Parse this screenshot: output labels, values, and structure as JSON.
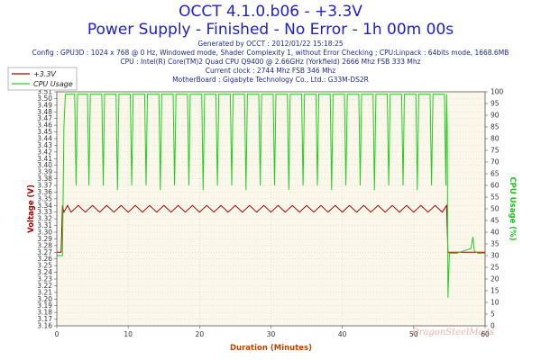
{
  "header": {
    "title": "OCCT 4.1.0.b06 - +3.3V",
    "subtitle": "Power Supply - Finished - No Error - 1h 00m 00s",
    "info_lines": [
      "Generated by OCCT : 2012/01/22 15:18:25",
      "Config : GPU3D : 1024 x 768 @ 0 Hz, Windowed mode, Shader Complexity 1, without Error Checking ; CPU:Linpack : 64bits mode, 1668.6MB",
      "CPU : Intel(R) Core(TM)2 Quad CPU Q9400 @ 2.66GHz (Yorkfield) 2666 Mhz FSB 333 Mhz",
      "Current clock : 2744 Mhz FSB 346 Mhz",
      "MotherBoard : Gigabyte Technology Co., Ltd.: G33M-DS2R"
    ]
  },
  "watermark": "DragonSteelMods",
  "colors": {
    "voltage": "#a00000",
    "cpu": "#20d020",
    "plot_bg": "#fbf7ea",
    "grid": "#c8c8c8",
    "title": "#2020c8",
    "xlabel_color": "#b84400",
    "ylabel_left_color": "#a00000",
    "ylabel_right_color": "#20c020"
  },
  "chart_data": {
    "type": "line",
    "xlabel": "Duration (Minutes)",
    "ylabel_left": "Voltage (V)",
    "ylabel_right": "CPU Usage (%)",
    "xlim": [
      0,
      60
    ],
    "ylim_left": [
      3.16,
      3.51
    ],
    "ylim_right": [
      0,
      100
    ],
    "x_ticks": [
      0,
      10,
      20,
      30,
      40,
      50,
      60
    ],
    "y_left_ticks": [
      "3.16",
      "3.17",
      "3.18",
      "3.19",
      "3.20",
      "3.21",
      "3.22",
      "3.23",
      "3.24",
      "3.25",
      "3.26",
      "3.27",
      "3.28",
      "3.29",
      "3.30",
      "3.31",
      "3.32",
      "3.33",
      "3.34",
      "3.35",
      "3.36",
      "3.37",
      "3.38",
      "3.39",
      "3.40",
      "3.41",
      "3.42",
      "3.43",
      "3.44",
      "3.45",
      "3.46",
      "3.47",
      "3.48",
      "3.49",
      "3.50",
      "3.51"
    ],
    "y_right_ticks": [
      0,
      5,
      10,
      15,
      20,
      25,
      30,
      35,
      40,
      45,
      50,
      55,
      60,
      65,
      70,
      75,
      80,
      85,
      90,
      95,
      100
    ],
    "grid": true,
    "legend_position": "top-left",
    "series": [
      {
        "name": "+3.3V",
        "axis": "left",
        "points": [
          [
            0.0,
            3.27
          ],
          [
            0.6,
            3.27
          ],
          [
            0.8,
            3.34
          ],
          [
            1.0,
            3.33
          ],
          [
            1.5,
            3.34
          ],
          [
            2.0,
            3.33
          ],
          [
            3.0,
            3.34
          ],
          [
            4.0,
            3.33
          ],
          [
            5.0,
            3.34
          ],
          [
            6.0,
            3.33
          ],
          [
            7.0,
            3.34
          ],
          [
            8.0,
            3.33
          ],
          [
            9.0,
            3.34
          ],
          [
            10.0,
            3.33
          ],
          [
            11.0,
            3.34
          ],
          [
            12.0,
            3.33
          ],
          [
            13.0,
            3.34
          ],
          [
            14.0,
            3.33
          ],
          [
            15.0,
            3.34
          ],
          [
            16.0,
            3.33
          ],
          [
            17.0,
            3.34
          ],
          [
            18.0,
            3.33
          ],
          [
            19.0,
            3.34
          ],
          [
            20.0,
            3.33
          ],
          [
            21.0,
            3.34
          ],
          [
            22.0,
            3.33
          ],
          [
            23.0,
            3.34
          ],
          [
            24.0,
            3.33
          ],
          [
            25.0,
            3.34
          ],
          [
            26.0,
            3.33
          ],
          [
            27.0,
            3.34
          ],
          [
            28.0,
            3.33
          ],
          [
            29.0,
            3.34
          ],
          [
            30.0,
            3.33
          ],
          [
            31.0,
            3.34
          ],
          [
            32.0,
            3.33
          ],
          [
            33.0,
            3.34
          ],
          [
            34.0,
            3.33
          ],
          [
            35.0,
            3.34
          ],
          [
            36.0,
            3.33
          ],
          [
            37.0,
            3.34
          ],
          [
            38.0,
            3.33
          ],
          [
            39.0,
            3.34
          ],
          [
            40.0,
            3.33
          ],
          [
            41.0,
            3.34
          ],
          [
            42.0,
            3.33
          ],
          [
            43.0,
            3.34
          ],
          [
            44.0,
            3.33
          ],
          [
            45.0,
            3.34
          ],
          [
            46.0,
            3.33
          ],
          [
            47.0,
            3.34
          ],
          [
            48.0,
            3.33
          ],
          [
            49.0,
            3.34
          ],
          [
            50.0,
            3.33
          ],
          [
            51.0,
            3.34
          ],
          [
            52.0,
            3.33
          ],
          [
            53.0,
            3.34
          ],
          [
            54.0,
            3.33
          ],
          [
            54.6,
            3.34
          ],
          [
            54.8,
            3.27
          ],
          [
            56.0,
            3.27
          ],
          [
            58.0,
            3.27
          ],
          [
            60.0,
            3.27
          ]
        ]
      },
      {
        "name": "CPU Usage",
        "axis": "right",
        "points": [
          [
            0.0,
            30
          ],
          [
            0.8,
            30
          ],
          [
            1.0,
            85
          ],
          [
            1.2,
            99
          ],
          [
            2.5,
            99
          ],
          [
            2.7,
            60
          ],
          [
            2.9,
            99
          ],
          [
            4.3,
            99
          ],
          [
            4.5,
            60
          ],
          [
            4.7,
            99
          ],
          [
            6.3,
            99
          ],
          [
            6.5,
            60
          ],
          [
            6.7,
            99
          ],
          [
            8.3,
            99
          ],
          [
            8.5,
            58
          ],
          [
            8.7,
            99
          ],
          [
            10.3,
            99
          ],
          [
            10.5,
            60
          ],
          [
            10.7,
            99
          ],
          [
            12.3,
            99
          ],
          [
            12.5,
            60
          ],
          [
            12.7,
            99
          ],
          [
            14.3,
            99
          ],
          [
            14.5,
            58
          ],
          [
            14.7,
            99
          ],
          [
            16.3,
            99
          ],
          [
            16.5,
            60
          ],
          [
            16.7,
            99
          ],
          [
            18.3,
            99
          ],
          [
            18.5,
            60
          ],
          [
            18.7,
            99
          ],
          [
            20.3,
            99
          ],
          [
            20.5,
            58
          ],
          [
            20.7,
            99
          ],
          [
            22.3,
            99
          ],
          [
            22.5,
            60
          ],
          [
            22.7,
            99
          ],
          [
            24.3,
            99
          ],
          [
            24.5,
            60
          ],
          [
            24.7,
            99
          ],
          [
            26.3,
            99
          ],
          [
            26.5,
            58
          ],
          [
            26.7,
            99
          ],
          [
            28.3,
            99
          ],
          [
            28.5,
            60
          ],
          [
            28.7,
            99
          ],
          [
            30.3,
            99
          ],
          [
            30.5,
            60
          ],
          [
            30.7,
            99
          ],
          [
            32.3,
            99
          ],
          [
            32.5,
            58
          ],
          [
            32.7,
            99
          ],
          [
            34.3,
            99
          ],
          [
            34.5,
            60
          ],
          [
            34.7,
            99
          ],
          [
            36.3,
            99
          ],
          [
            36.5,
            60
          ],
          [
            36.7,
            99
          ],
          [
            38.3,
            99
          ],
          [
            38.5,
            58
          ],
          [
            38.7,
            99
          ],
          [
            40.3,
            99
          ],
          [
            40.5,
            60
          ],
          [
            40.7,
            99
          ],
          [
            42.3,
            99
          ],
          [
            42.5,
            60
          ],
          [
            42.7,
            99
          ],
          [
            44.3,
            99
          ],
          [
            44.5,
            58
          ],
          [
            44.7,
            99
          ],
          [
            46.3,
            99
          ],
          [
            46.5,
            60
          ],
          [
            46.7,
            99
          ],
          [
            48.3,
            99
          ],
          [
            48.5,
            60
          ],
          [
            48.7,
            99
          ],
          [
            50.3,
            99
          ],
          [
            50.5,
            58
          ],
          [
            50.7,
            99
          ],
          [
            52.3,
            99
          ],
          [
            52.5,
            60
          ],
          [
            52.7,
            99
          ],
          [
            54.3,
            99
          ],
          [
            54.5,
            60
          ],
          [
            54.6,
            99
          ],
          [
            54.7,
            85
          ],
          [
            54.8,
            12
          ],
          [
            55.0,
            31
          ],
          [
            56.0,
            31
          ],
          [
            57.0,
            32
          ],
          [
            58.0,
            33
          ],
          [
            58.3,
            38
          ],
          [
            58.5,
            32
          ],
          [
            59.0,
            31
          ],
          [
            60.0,
            31
          ]
        ]
      }
    ]
  }
}
